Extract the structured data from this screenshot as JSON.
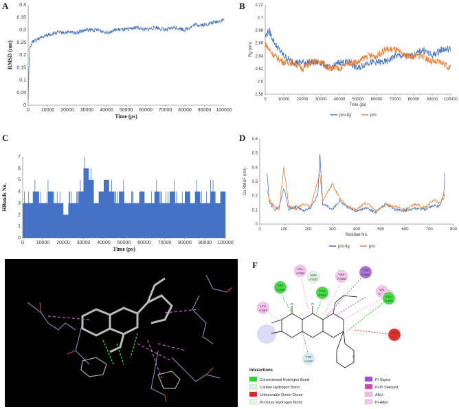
{
  "panels": {
    "a": "A",
    "b": "B",
    "c": "C",
    "d": "D",
    "e": "E",
    "f": "F"
  },
  "colors": {
    "blue": "#4472C4",
    "orange": "#ED7D31"
  },
  "chart_data": [
    {
      "id": "A",
      "type": "line",
      "xlabel": "Time (ps)",
      "ylabel": "RMSD (nm)",
      "xlim": [
        0,
        100000
      ],
      "ylim": [
        0,
        0.4
      ],
      "xticks": [
        "0",
        "10000",
        "20000",
        "30000",
        "40000",
        "50000",
        "60000",
        "70000",
        "80000",
        "90000",
        "100000"
      ],
      "yticks": [
        "0",
        "0.05",
        "0.1",
        "0.15",
        "0.2",
        "0.25",
        "0.3",
        "0.35",
        "0.4"
      ],
      "series": [
        {
          "name": "RMSD",
          "color": "#4472C4",
          "x": [
            0,
            500,
            1000,
            2000,
            4000,
            7000,
            10000,
            15000,
            20000,
            25000,
            30000,
            35000,
            40000,
            45000,
            50000,
            55000,
            60000,
            65000,
            70000,
            75000,
            80000,
            85000,
            90000,
            95000,
            100000
          ],
          "y": [
            0.02,
            0.18,
            0.23,
            0.25,
            0.26,
            0.27,
            0.28,
            0.29,
            0.29,
            0.29,
            0.3,
            0.3,
            0.29,
            0.3,
            0.3,
            0.31,
            0.3,
            0.31,
            0.3,
            0.31,
            0.3,
            0.32,
            0.32,
            0.33,
            0.34
          ]
        }
      ]
    },
    {
      "id": "B",
      "type": "line",
      "xlabel": "Time (ps)",
      "ylabel": "Rg (nm)",
      "xlim": [
        0,
        100000
      ],
      "ylim": [
        2.58,
        2.72
      ],
      "xticks": [
        "0",
        "10000",
        "20000",
        "30000",
        "40000",
        "50000",
        "60000",
        "70000",
        "80000",
        "90000",
        "100000"
      ],
      "yticks": [
        "2.58",
        "2.6",
        "2.62",
        "2.64",
        "2.66",
        "2.68",
        "2.7",
        "2.72"
      ],
      "legend": [
        "pro-lig",
        "pro"
      ],
      "series": [
        {
          "name": "pro-lig",
          "color": "#4472C4",
          "x": [
            0,
            2000,
            5000,
            10000,
            15000,
            20000,
            25000,
            30000,
            35000,
            40000,
            45000,
            50000,
            55000,
            60000,
            65000,
            70000,
            75000,
            80000,
            85000,
            90000,
            95000,
            100000
          ],
          "y": [
            2.67,
            2.68,
            2.66,
            2.64,
            2.63,
            2.63,
            2.63,
            2.63,
            2.62,
            2.63,
            2.63,
            2.62,
            2.63,
            2.63,
            2.63,
            2.64,
            2.64,
            2.64,
            2.65,
            2.64,
            2.65,
            2.65
          ]
        },
        {
          "name": "pro",
          "color": "#ED7D31",
          "x": [
            0,
            2000,
            5000,
            10000,
            15000,
            20000,
            25000,
            30000,
            35000,
            40000,
            45000,
            50000,
            55000,
            60000,
            65000,
            70000,
            75000,
            80000,
            85000,
            90000,
            95000,
            100000
          ],
          "y": [
            2.66,
            2.65,
            2.64,
            2.63,
            2.63,
            2.62,
            2.63,
            2.63,
            2.62,
            2.62,
            2.63,
            2.63,
            2.64,
            2.64,
            2.65,
            2.65,
            2.64,
            2.64,
            2.64,
            2.63,
            2.63,
            2.62
          ]
        }
      ]
    },
    {
      "id": "C",
      "type": "bar",
      "xlabel": "Time (ps)",
      "ylabel": "HBonds No.",
      "xlim": [
        0,
        100000
      ],
      "ylim": [
        0,
        7
      ],
      "xticks": [
        "0",
        "10000",
        "20000",
        "30000",
        "40000",
        "50000",
        "60000",
        "70000",
        "80000",
        "90000",
        "100000"
      ],
      "yticks": [
        "0",
        "1",
        "2",
        "3",
        "4",
        "5",
        "6",
        "7"
      ],
      "series": [
        {
          "name": "HBonds",
          "color": "#4472C4",
          "x": [
            0,
            2500,
            5000,
            7500,
            10000,
            12500,
            15000,
            17500,
            20000,
            22500,
            25000,
            27500,
            30000,
            32500,
            35000,
            37500,
            40000,
            42500,
            45000,
            47500,
            50000,
            52500,
            55000,
            57500,
            60000,
            62500,
            65000,
            67500,
            70000,
            72500,
            75000,
            77500,
            80000,
            82500,
            85000,
            87500,
            90000,
            92500,
            95000,
            97500
          ],
          "y": [
            3,
            3,
            4,
            3,
            3,
            4,
            3,
            3,
            2,
            3,
            3,
            4,
            6,
            5,
            3,
            4,
            5,
            4,
            3,
            4,
            3,
            3,
            3,
            4,
            3,
            3,
            4,
            3,
            3,
            4,
            3,
            3,
            4,
            3,
            4,
            3,
            3,
            4,
            3,
            4
          ]
        }
      ]
    },
    {
      "id": "D",
      "type": "line",
      "xlabel": "Residue No.",
      "ylabel": "Cα RMSF (nm)",
      "xlim": [
        0,
        800
      ],
      "ylim": [
        0,
        0.6
      ],
      "xticks": [
        "0",
        "100",
        "200",
        "300",
        "400",
        "500",
        "600",
        "700",
        "800"
      ],
      "yticks": [
        "0",
        "0.1",
        "0.2",
        "0.3",
        "0.4",
        "0.5",
        "0.6"
      ],
      "legend": [
        "pro-lig",
        "pro"
      ],
      "series": [
        {
          "name": "pro-lig",
          "color": "#4472C4",
          "x": [
            30,
            40,
            60,
            80,
            100,
            120,
            150,
            180,
            210,
            240,
            248,
            260,
            300,
            330,
            360,
            400,
            440,
            480,
            520,
            560,
            600,
            640,
            680,
            720,
            740,
            760,
            765
          ],
          "y": [
            0.36,
            0.15,
            0.1,
            0.12,
            0.25,
            0.1,
            0.12,
            0.09,
            0.11,
            0.2,
            0.5,
            0.14,
            0.1,
            0.16,
            0.12,
            0.09,
            0.11,
            0.08,
            0.14,
            0.1,
            0.09,
            0.11,
            0.1,
            0.13,
            0.12,
            0.2,
            0.36
          ]
        },
        {
          "name": "pro",
          "color": "#ED7D31",
          "x": [
            30,
            40,
            60,
            80,
            100,
            120,
            150,
            180,
            210,
            240,
            248,
            260,
            300,
            330,
            360,
            400,
            440,
            480,
            520,
            560,
            600,
            640,
            680,
            720,
            740,
            760,
            765
          ],
          "y": [
            0.24,
            0.17,
            0.12,
            0.1,
            0.4,
            0.12,
            0.1,
            0.14,
            0.12,
            0.3,
            0.35,
            0.16,
            0.28,
            0.18,
            0.12,
            0.1,
            0.15,
            0.09,
            0.13,
            0.12,
            0.1,
            0.14,
            0.11,
            0.17,
            0.14,
            0.18,
            0.22
          ]
        }
      ]
    }
  ],
  "interactions": {
    "title": "Interactions",
    "legend": [
      {
        "label": "Conventional Hydrogen Bond",
        "color": "#22DD22"
      },
      {
        "label": "Carbon Hydrogen Bond",
        "color": "#D8F5E0"
      },
      {
        "label": "Unfavorable Donor-Donor",
        "color": "#E82020"
      },
      {
        "label": "Pi-Donor Hydrogen Bond",
        "color": "#E6F7E6"
      },
      {
        "label": "Pi-Sigma",
        "color": "#A050D8"
      },
      {
        "label": "Pi-Pi Stacked",
        "color": "#E040B0"
      },
      {
        "label": "Alkyl",
        "color": "#F4B8E8"
      },
      {
        "label": "Pi-Alkyl",
        "color": "#F0C8F0"
      }
    ],
    "residues": [
      {
        "name": "TRP",
        "id": "A:629",
        "color": "#44DD44"
      },
      {
        "name": "SER",
        "id": "A:630",
        "color": "#E0F4E8"
      },
      {
        "name": "VAL",
        "id": "A:656",
        "color": "#F4C4EE"
      },
      {
        "name": "TYR",
        "id": "A:631",
        "color": "#44DD44"
      },
      {
        "name": "TRP",
        "id": "A:659",
        "color": "#F4C4EE"
      },
      {
        "name": "TYR",
        "id": "A:662",
        "color": "#B070D8"
      },
      {
        "name": "VAL",
        "id": "A:711",
        "color": "#F4C4EE"
      },
      {
        "name": "TYR",
        "id": "A:666",
        "color": "#F4C4EE"
      },
      {
        "name": "LYS",
        "id": "A:554",
        "color": "#F4C4EE"
      },
      {
        "name": "GLU",
        "id": "A:205",
        "color": "#44DD44"
      },
      {
        "name": "ARG",
        "id": "A:?",
        "color": "#E43030"
      },
      {
        "name": "TYR",
        "id": "A:547",
        "color": "#D8EEF4"
      }
    ]
  }
}
